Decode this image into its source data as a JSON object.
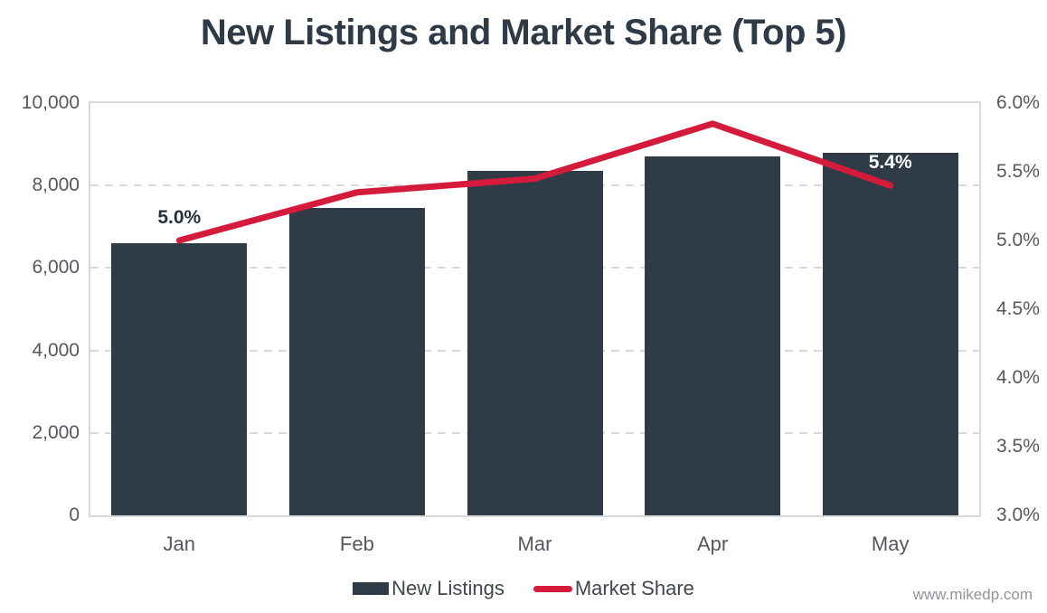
{
  "title": "New Listings and Market Share (Top 5)",
  "watermark": "www.mikedp.com",
  "colors": {
    "bar": "#2f3b47",
    "line": "#d51b3c",
    "title": "#2e3a46",
    "tick_text": "#54585d",
    "legend_text": "#3f464d",
    "grid": "#d9d9d9",
    "watermark": "#909599",
    "point_label_dark": "#28313a",
    "point_label_light": "#ffffff"
  },
  "chart_data": {
    "type": "combo: bar + line (dual axis)",
    "title": "New Listings and Market Share (Top 5)",
    "categories": [
      "Jan",
      "Feb",
      "Mar",
      "Apr",
      "May"
    ],
    "series": [
      {
        "name": "New Listings",
        "type": "bar",
        "axis": "left",
        "values": [
          6600,
          7450,
          8350,
          8700,
          8800
        ]
      },
      {
        "name": "Market Share",
        "type": "line",
        "axis": "right",
        "values": [
          5.0,
          5.35,
          5.45,
          5.85,
          5.4
        ]
      }
    ],
    "left_axis": {
      "min": 0,
      "max": 10000,
      "step": 2000,
      "tick_labels": [
        "0",
        "2,000",
        "4,000",
        "6,000",
        "8,000",
        "10,000"
      ]
    },
    "right_axis": {
      "min": 3.0,
      "max": 6.0,
      "step": 0.5,
      "tick_labels": [
        "3.0%",
        "3.5%",
        "4.0%",
        "4.5%",
        "5.0%",
        "5.5%",
        "6.0%"
      ]
    },
    "point_labels": [
      {
        "index": 0,
        "text": "5.0%",
        "style": "dark"
      },
      {
        "index": 4,
        "text": "5.4%",
        "style": "light"
      }
    ],
    "grid": "horizontal dashed at left-axis ticks",
    "legend_position": "bottom-center",
    "legend": [
      {
        "label": "New Listings",
        "swatch": "bar"
      },
      {
        "label": "Market Share",
        "swatch": "line"
      }
    ]
  }
}
